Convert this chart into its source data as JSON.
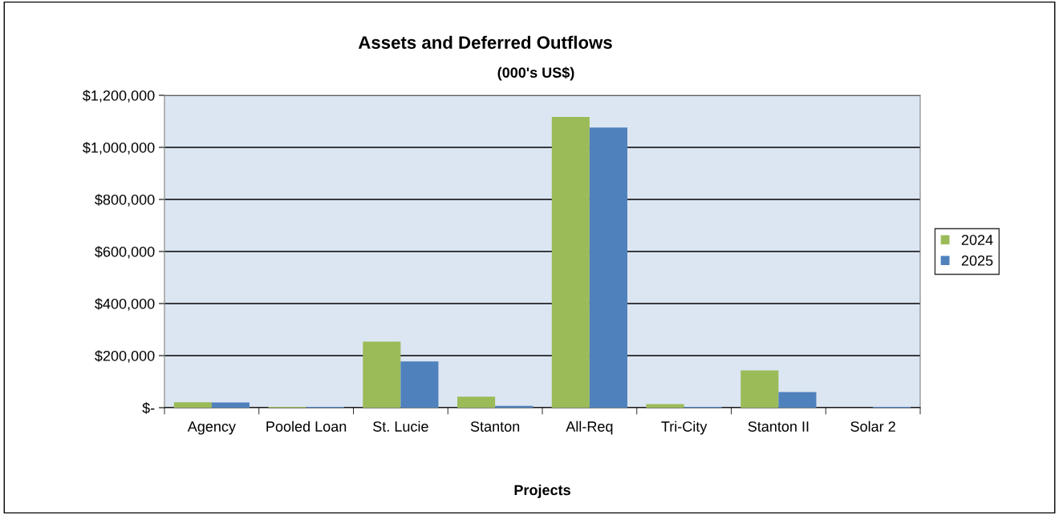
{
  "chart_data": {
    "type": "bar",
    "title": "Assets and Deferred Outflows",
    "subtitle": "(000's US$)",
    "xlabel": "Projects",
    "categories": [
      "Agency",
      "Pooled Loan",
      "St. Lucie",
      "Stanton",
      "All-Req",
      "Tri-City",
      "Stanton II",
      "Solar 2"
    ],
    "series": [
      {
        "name": "2024",
        "color": "#9bbb59",
        "values": [
          21000,
          3000,
          254000,
          42000,
          1117000,
          14000,
          143000,
          0
        ]
      },
      {
        "name": "2025",
        "color": "#4f81bd",
        "values": [
          20000,
          3000,
          178000,
          7000,
          1076000,
          3000,
          60000,
          3000
        ]
      }
    ],
    "ylim": [
      0,
      1200000
    ],
    "yticks": [
      {
        "value": 0,
        "label": "$-"
      },
      {
        "value": 200000,
        "label": "$200,000"
      },
      {
        "value": 400000,
        "label": "$400,000"
      },
      {
        "value": 600000,
        "label": "$600,000"
      },
      {
        "value": 800000,
        "label": "$800,000"
      },
      {
        "value": 1000000,
        "label": "$1,000,000"
      },
      {
        "value": 1200000,
        "label": "$1,200,000"
      }
    ],
    "grid": "y",
    "legend": "right"
  }
}
